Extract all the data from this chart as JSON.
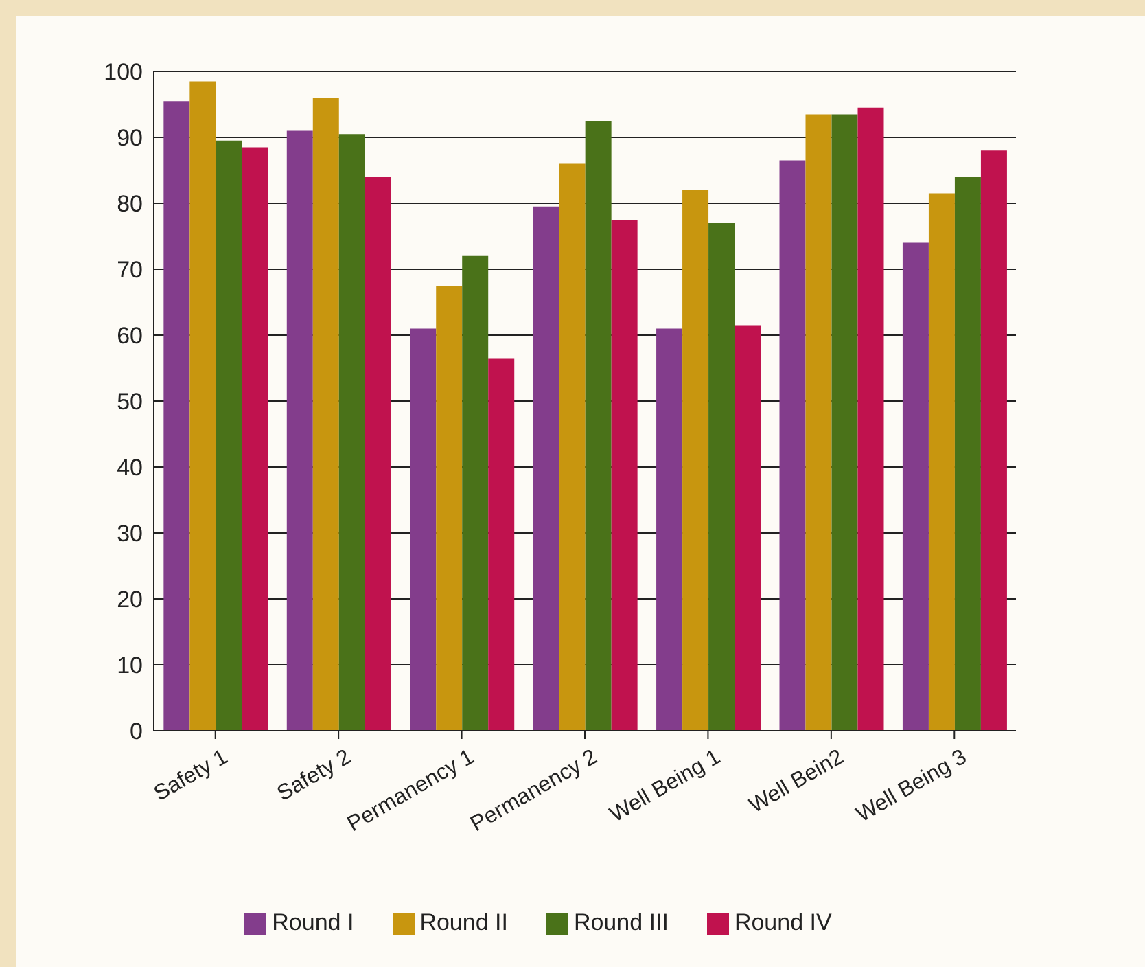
{
  "chart_data": {
    "type": "bar",
    "categories": [
      "Safety 1",
      "Safety 2",
      "Permanency 1",
      "Permanency 2",
      "Well Being 1",
      "Well Bein2",
      "Well Being 3"
    ],
    "series": [
      {
        "name": "Round I",
        "color": "#833d8c",
        "values": [
          95.5,
          91,
          61,
          79.5,
          61,
          86.5,
          74
        ]
      },
      {
        "name": "Round II",
        "color": "#c8960f",
        "values": [
          98.5,
          96,
          67.5,
          86,
          82,
          93.5,
          81.5
        ]
      },
      {
        "name": "Round III",
        "color": "#4a7219",
        "values": [
          89.5,
          90.5,
          72,
          92.5,
          77,
          93.5,
          84
        ]
      },
      {
        "name": "Round IV",
        "color": "#c0124e",
        "values": [
          88.5,
          84,
          56.5,
          77.5,
          61.5,
          94.5,
          88
        ]
      }
    ],
    "ylim": [
      0,
      100
    ],
    "yticks": [
      0,
      10,
      20,
      30,
      40,
      50,
      60,
      70,
      80,
      90,
      100
    ],
    "grid": "y",
    "legend": "bottom"
  }
}
